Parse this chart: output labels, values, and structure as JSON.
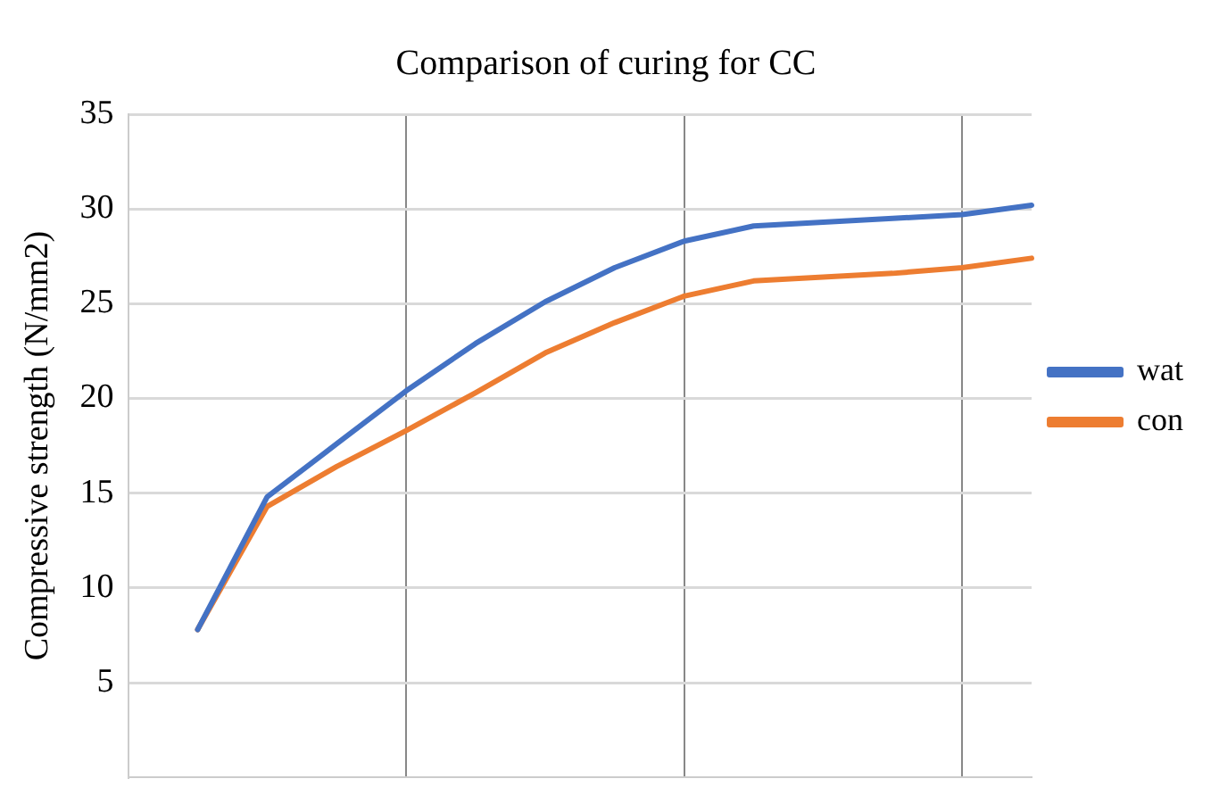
{
  "chart_data": {
    "type": "line",
    "title": "Comparison of curing for CC",
    "ylabel": "Compressive strength (N/mm2)",
    "categories": [
      null,
      null,
      null,
      null,
      null,
      null,
      null,
      null,
      null,
      null,
      null,
      null,
      null,
      null
    ],
    "ylim": [
      0,
      35
    ],
    "yticks": [
      5,
      10,
      15,
      20,
      25,
      30,
      35
    ],
    "tick_labels": "y",
    "grid": true,
    "legend": "right",
    "marker": "none",
    "line_style": "solid",
    "series": [
      {
        "name": "wat",
        "color": "#4472c4",
        "values": [
          null,
          7.8,
          14.8,
          17.6,
          20.4,
          22.9,
          25.1,
          26.9,
          28.3,
          29.1,
          29.3,
          29.5,
          29.7,
          30.2
        ]
      },
      {
        "name": "con",
        "color": "#ed7d31",
        "values": [
          null,
          7.8,
          14.3,
          16.4,
          18.3,
          20.3,
          22.4,
          24.0,
          25.4,
          26.2,
          26.4,
          26.6,
          26.9,
          27.4
        ]
      }
    ]
  }
}
